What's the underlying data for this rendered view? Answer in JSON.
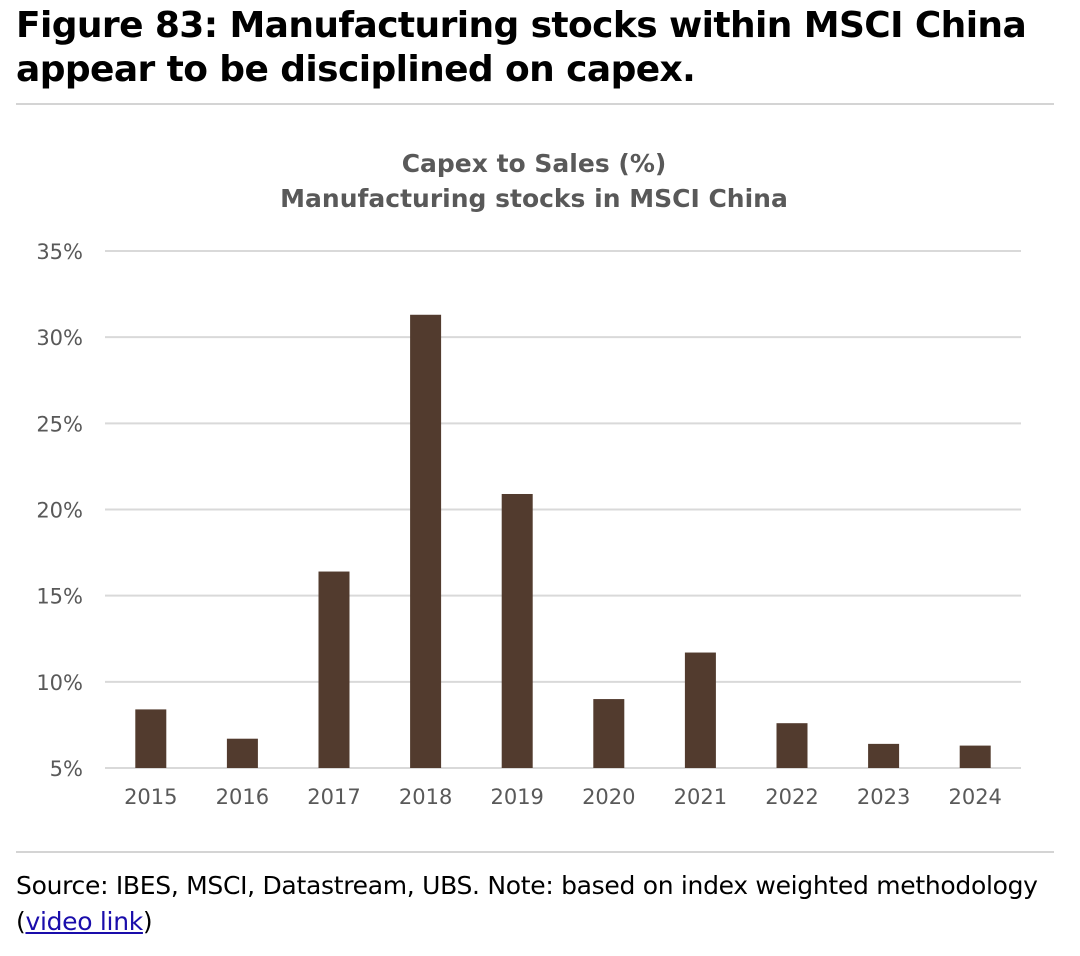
{
  "figure": {
    "title": "Figure 83: Manufacturing stocks within MSCI China appear to be disciplined on capex."
  },
  "footer": {
    "source_text": "Source: IBES, MSCI, Datastream, UBS. Note: based on index weighted methodology",
    "open_paren": "(",
    "link_text": "video link",
    "close_paren": ")"
  },
  "colors": {
    "bar": "#523b2e",
    "gridline": "#d9d9d9",
    "axis_text": "#595959"
  },
  "chart_data": {
    "type": "bar",
    "title": "Capex to Sales (%)",
    "subtitle": "Manufacturing stocks in MSCI China",
    "xlabel": "",
    "ylabel": "",
    "categories": [
      "2015",
      "2016",
      "2017",
      "2018",
      "2019",
      "2020",
      "2021",
      "2022",
      "2023",
      "2024"
    ],
    "values": [
      8.4,
      6.7,
      16.4,
      31.3,
      20.9,
      9.0,
      11.7,
      7.6,
      6.4,
      6.3
    ],
    "ylim": [
      5,
      35
    ],
    "yticks": [
      5,
      10,
      15,
      20,
      25,
      30,
      35
    ],
    "ytick_labels": [
      "5%",
      "10%",
      "15%",
      "20%",
      "25%",
      "30%",
      "35%"
    ],
    "grid": true,
    "legend": "none"
  }
}
